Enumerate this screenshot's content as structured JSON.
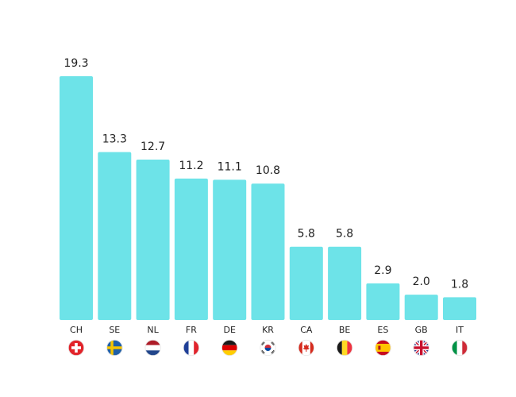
{
  "chart_data": {
    "type": "bar",
    "categories": [
      "CH",
      "SE",
      "NL",
      "FR",
      "DE",
      "KR",
      "CA",
      "BE",
      "ES",
      "GB",
      "IT"
    ],
    "values": [
      19.3,
      13.3,
      12.7,
      11.2,
      11.1,
      10.8,
      5.8,
      5.8,
      2.9,
      2.0,
      1.8
    ],
    "value_labels": [
      "19.3",
      "13.3",
      "12.7",
      "11.2",
      "11.1",
      "10.8",
      "5.8",
      "5.8",
      "2.9",
      "2.0",
      "1.8"
    ],
    "flag_icons": [
      "switzerland-flag-icon",
      "sweden-flag-icon",
      "netherlands-flag-icon",
      "france-flag-icon",
      "germany-flag-icon",
      "south-korea-flag-icon",
      "canada-flag-icon",
      "belgium-flag-icon",
      "spain-flag-icon",
      "united-kingdom-flag-icon",
      "italy-flag-icon"
    ],
    "title": "",
    "xlabel": "",
    "ylabel": "",
    "ylim": [
      0,
      20
    ],
    "grid": false,
    "bar_color": "#6de3e8"
  }
}
